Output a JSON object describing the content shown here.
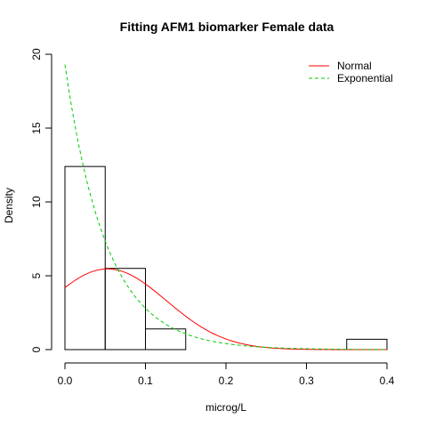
{
  "chart_data": {
    "type": "histogram",
    "title": "Fitting AFM1 biomarker Female data",
    "xlabel": "microg/L",
    "ylabel": "Density",
    "xlim": [
      0,
      0.4
    ],
    "ylim": [
      0,
      20
    ],
    "x_ticks": [
      "0.0",
      "0.1",
      "0.2",
      "0.3",
      "0.4"
    ],
    "y_ticks": [
      "0",
      "5",
      "10",
      "15",
      "20"
    ],
    "bins": [
      {
        "start": 0.0,
        "end": 0.05,
        "density": 12.4
      },
      {
        "start": 0.05,
        "end": 0.1,
        "density": 5.5
      },
      {
        "start": 0.1,
        "end": 0.15,
        "density": 1.4
      },
      {
        "start": 0.35,
        "end": 0.4,
        "density": 0.7
      }
    ],
    "curves": [
      {
        "name": "Normal",
        "color": "#ff0000",
        "dash": "solid",
        "dist": "normal",
        "mean": 0.053,
        "sd": 0.073
      },
      {
        "name": "Exponential",
        "color": "#00cd00",
        "dash": "dashed",
        "dist": "exponential",
        "rate": 19.3
      }
    ],
    "legend_position": "top-right",
    "grid": false
  }
}
